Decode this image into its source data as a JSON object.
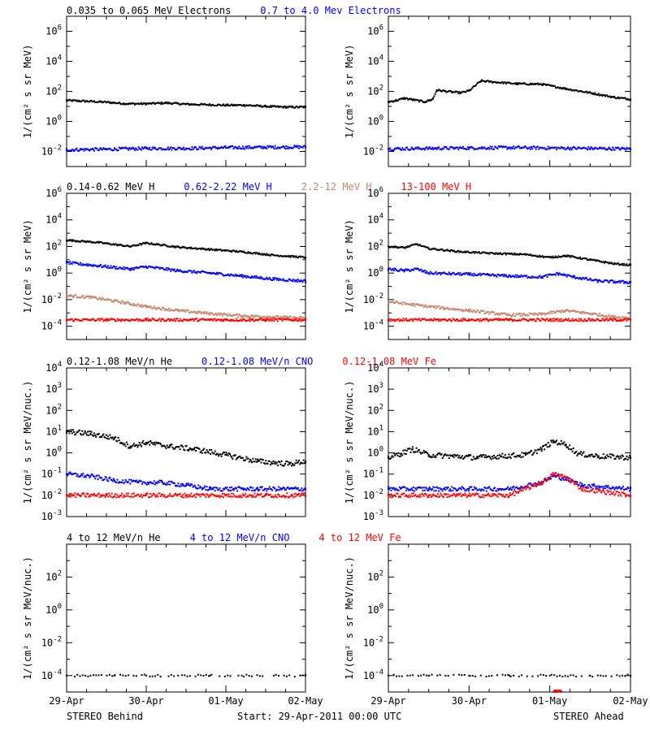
{
  "colors": {
    "black": "#000000",
    "blue": "#0000ff",
    "tan": "#c8866a",
    "red": "#ff0000"
  },
  "footer": {
    "left": "STEREO Behind",
    "center": "Start: 29-Apr-2011 00:00 UTC",
    "right": "STEREO Ahead"
  },
  "chart_data": [
    {
      "type": "scatter",
      "row": "electrons",
      "title_parts": [
        {
          "text": "0.035 to 0.065 MeV Electrons",
          "color": "#000000"
        },
        {
          "text": "0.7 to 4.0 Mev Electrons",
          "color": "#0000ff"
        }
      ],
      "ylabel": "1/(cm² s sr MeV)",
      "yscale": "log",
      "ylim_exp": [
        -3,
        7
      ],
      "yticks_exp": [
        -2,
        0,
        2,
        4,
        6
      ],
      "x_ticks": [
        "29-Apr",
        "30-Apr",
        "01-May",
        "02-May"
      ],
      "xlim_days": [
        0,
        3
      ],
      "panels": [
        {
          "side": "STEREO Behind",
          "series": [
            {
              "color": "#000000",
              "x": [
                0,
                0.25,
                0.5,
                0.75,
                1.0,
                1.25,
                1.5,
                1.75,
                2.0,
                2.25,
                2.5,
                2.75,
                3.0
              ],
              "y": [
                25,
                22,
                19,
                15,
                15,
                17,
                14,
                13,
                12,
                12,
                10,
                9,
                9
              ]
            },
            {
              "color": "#0000ff",
              "x": [
                0,
                0.5,
                1.0,
                1.5,
                2.0,
                2.5,
                3.0
              ],
              "y": [
                0.013,
                0.014,
                0.016,
                0.016,
                0.018,
                0.019,
                0.02
              ]
            }
          ]
        },
        {
          "side": "STEREO Ahead",
          "series": [
            {
              "color": "#000000",
              "x": [
                0,
                0.1,
                0.2,
                0.3,
                0.45,
                0.55,
                0.6,
                0.8,
                0.9,
                1.0,
                1.15,
                1.3,
                1.6,
                1.9,
                2.2,
                2.5,
                2.8,
                3.0
              ],
              "y": [
                20,
                25,
                35,
                28,
                20,
                30,
                120,
                90,
                80,
                110,
                500,
                420,
                320,
                300,
                150,
                80,
                40,
                30
              ]
            },
            {
              "color": "#0000ff",
              "x": [
                0,
                0.5,
                1.0,
                1.5,
                2.0,
                2.5,
                3.0
              ],
              "y": [
                0.015,
                0.016,
                0.017,
                0.018,
                0.017,
                0.016,
                0.015
              ]
            }
          ]
        }
      ]
    },
    {
      "type": "scatter",
      "row": "protons",
      "title_parts": [
        {
          "text": "0.14-0.62 MeV H",
          "color": "#000000"
        },
        {
          "text": "0.62-2.22 MeV H",
          "color": "#0000ff"
        },
        {
          "text": "2.2-12 MeV H",
          "color": "#c8866a"
        },
        {
          "text": "13-100 MeV H",
          "color": "#ff0000"
        }
      ],
      "ylabel": "1/(cm² s sr MeV)",
      "yscale": "log",
      "ylim_exp": [
        -5,
        6
      ],
      "yticks_exp": [
        -4,
        -2,
        0,
        2,
        4,
        6
      ],
      "x_ticks": [
        "29-Apr",
        "30-Apr",
        "01-May",
        "02-May"
      ],
      "xlim_days": [
        0,
        3
      ],
      "panels": [
        {
          "side": "STEREO Behind",
          "series": [
            {
              "color": "#000000",
              "x": [
                0,
                0.4,
                0.8,
                1.0,
                1.4,
                1.8,
                2.2,
                2.6,
                3.0
              ],
              "y": [
                300,
                200,
                100,
                180,
                90,
                60,
                40,
                22,
                15
              ]
            },
            {
              "color": "#0000ff",
              "x": [
                0,
                0.4,
                0.8,
                1.0,
                1.4,
                1.8,
                2.2,
                2.6,
                3.0
              ],
              "y": [
                6,
                3.5,
                2,
                3,
                1.5,
                1,
                0.6,
                0.35,
                0.25
              ]
            },
            {
              "color": "#c8866a",
              "x": [
                0,
                0.3,
                0.6,
                1.0,
                1.4,
                1.8,
                2.2,
                2.6,
                3.0
              ],
              "y": [
                0.02,
                0.015,
                0.008,
                0.003,
                0.0015,
                0.0009,
                0.0006,
                0.0005,
                0.0004
              ]
            },
            {
              "color": "#ff0000",
              "x": [
                0,
                0.5,
                1.0,
                1.5,
                2.0,
                2.5,
                3.0
              ],
              "y": [
                0.0003,
                0.0003,
                0.0003,
                0.0003,
                0.0003,
                0.0003,
                0.0003
              ]
            }
          ]
        },
        {
          "side": "STEREO Ahead",
          "series": [
            {
              "color": "#000000",
              "x": [
                0,
                0.2,
                0.35,
                0.5,
                0.9,
                1.3,
                1.7,
                2.0,
                2.2,
                2.5,
                2.8,
                3.0
              ],
              "y": [
                100,
                80,
                150,
                70,
                40,
                30,
                25,
                15,
                20,
                10,
                5,
                4
              ]
            },
            {
              "color": "#0000ff",
              "x": [
                0,
                0.2,
                0.35,
                0.5,
                1.0,
                1.5,
                1.9,
                2.1,
                2.3,
                2.6,
                3.0
              ],
              "y": [
                2,
                1.5,
                2,
                1,
                0.8,
                0.6,
                0.5,
                0.9,
                0.5,
                0.25,
                0.2
              ]
            },
            {
              "color": "#c8866a",
              "x": [
                0,
                0.5,
                1.0,
                1.5,
                1.9,
                2.2,
                2.5,
                2.8,
                3.0
              ],
              "y": [
                0.007,
                0.003,
                0.0015,
                0.0007,
                0.0008,
                0.0015,
                0.0009,
                0.0005,
                0.0004
              ]
            },
            {
              "color": "#ff0000",
              "x": [
                0,
                0.5,
                1.0,
                1.5,
                2.0,
                2.5,
                3.0
              ],
              "y": [
                0.0003,
                0.0003,
                0.0003,
                0.0003,
                0.0003,
                0.0003,
                0.0003
              ]
            }
          ]
        }
      ]
    },
    {
      "type": "scatter",
      "row": "heavy-ions-low",
      "title_parts": [
        {
          "text": "0.12-1.08 MeV/n He",
          "color": "#000000"
        },
        {
          "text": "0.12-1.08 MeV/n CNO",
          "color": "#0000ff"
        },
        {
          "text": "0.12-1.08 MeV Fe",
          "color": "#ff0000"
        }
      ],
      "ylabel": "1/(cm² s sr MeV/nuc.)",
      "yscale": "log",
      "ylim_exp": [
        -3,
        4
      ],
      "yticks_exp": [
        -3,
        -2,
        -1,
        0,
        1,
        2,
        3,
        4
      ],
      "x_ticks": [
        "29-Apr",
        "30-Apr",
        "01-May",
        "02-May"
      ],
      "xlim_days": [
        0,
        3
      ],
      "panels": [
        {
          "side": "STEREO Behind",
          "series": [
            {
              "color": "#000000",
              "x": [
                0,
                0.3,
                0.6,
                0.8,
                1.0,
                1.3,
                1.6,
                2.0,
                2.4,
                2.8,
                3.0
              ],
              "y": [
                10,
                8,
                5,
                2,
                3,
                2,
                1.5,
                0.8,
                0.4,
                0.3,
                0.4
              ]
            },
            {
              "color": "#0000ff",
              "x": [
                0,
                0.3,
                0.6,
                0.9,
                1.2,
                1.5,
                1.8,
                2.1,
                2.4,
                2.7,
                3.0
              ],
              "y": [
                0.1,
                0.08,
                0.05,
                0.04,
                0.04,
                0.03,
                0.02,
                0.02,
                0.02,
                0.02,
                0.02
              ]
            },
            {
              "color": "#ff0000",
              "x": [
                0,
                0.5,
                1.0,
                1.5,
                2.0,
                2.5,
                3.0
              ],
              "y": [
                0.01,
                0.01,
                0.01,
                0.01,
                0.01,
                0.01,
                0.01
              ]
            }
          ]
        },
        {
          "side": "STEREO Ahead",
          "series": [
            {
              "color": "#000000",
              "x": [
                0,
                0.15,
                0.3,
                0.5,
                0.8,
                1.1,
                1.4,
                1.7,
                1.9,
                2.05,
                2.2,
                2.35,
                2.6,
                3.0
              ],
              "y": [
                0.6,
                0.9,
                1.5,
                0.8,
                0.7,
                0.6,
                0.7,
                0.8,
                1.5,
                3.5,
                2.5,
                0.9,
                0.7,
                0.6
              ]
            },
            {
              "color": "#0000ff",
              "x": [
                0,
                0.5,
                1.0,
                1.5,
                1.9,
                2.05,
                2.2,
                2.4,
                3.0
              ],
              "y": [
                0.02,
                0.02,
                0.02,
                0.02,
                0.04,
                0.08,
                0.06,
                0.03,
                0.02
              ]
            },
            {
              "color": "#ff0000",
              "x": [
                0,
                0.5,
                1.0,
                1.5,
                1.9,
                2.05,
                2.2,
                2.4,
                3.0
              ],
              "y": [
                0.01,
                0.01,
                0.01,
                0.01,
                0.04,
                0.1,
                0.07,
                0.02,
                0.01
              ]
            }
          ]
        }
      ]
    },
    {
      "type": "scatter",
      "row": "heavy-ions-high",
      "title_parts": [
        {
          "text": "4 to 12 MeV/n He",
          "color": "#000000"
        },
        {
          "text": "4 to 12 MeV/n CNO",
          "color": "#0000ff"
        },
        {
          "text": "4 to 12 MeV Fe",
          "color": "#ff0000"
        }
      ],
      "ylabel": "1/(cm² s sr MeV/nuc.)",
      "yscale": "log",
      "ylim_exp": [
        -5,
        4
      ],
      "yticks_exp": [
        -4,
        -2,
        0,
        2
      ],
      "x_ticks": [
        "29-Apr",
        "30-Apr",
        "01-May",
        "02-May"
      ],
      "xlim_days": [
        0,
        3
      ],
      "panels": [
        {
          "side": "STEREO Behind",
          "series": [
            {
              "color": "#000000",
              "x": [
                0,
                0.3,
                0.6,
                1.0,
                1.4,
                1.8,
                2.2,
                2.6,
                3.0
              ],
              "y": [
                0.0001,
                0.0001,
                0.0001,
                0.0001,
                0.0001,
                0.0001,
                0.0001,
                0.0001,
                0.0001
              ]
            }
          ]
        },
        {
          "side": "STEREO Ahead",
          "series": [
            {
              "color": "#000000",
              "x": [
                0,
                0.5,
                1.0,
                1.5,
                2.0,
                2.5,
                3.0
              ],
              "y": [
                0.0001,
                0.0001,
                0.0001,
                0.0001,
                0.0001,
                0.0001,
                0.0001
              ]
            },
            {
              "color": "#ff0000",
              "x": [
                2.05,
                2.1,
                2.15
              ],
              "y": [
                1e-05,
                1e-05,
                1e-05
              ]
            }
          ]
        }
      ]
    }
  ]
}
